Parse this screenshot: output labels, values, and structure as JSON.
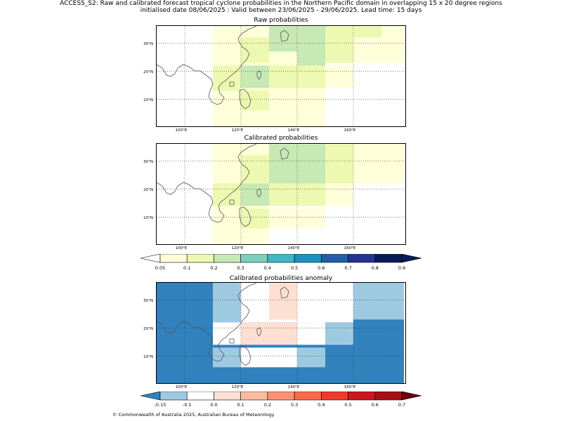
{
  "title_line1": "ACCESS_S2: Raw and calibrated forecast tropical cyclone probabilities in the Northern Pacific domain in overlapping 15 x 20 degree regions",
  "title_line2": "initialised date 08/06/2025 :  Valid between 23/06/2025 - 29/06/2025. Lead time: 15 days",
  "panels": [
    {
      "title": "Raw probabilities"
    },
    {
      "title": "Calibrated probabilities"
    },
    {
      "title": "Calibrated probabilities anomaly"
    }
  ],
  "lat_labels": [
    "30°N",
    "20°N",
    "10°N"
  ],
  "lon_labels": [
    "100°E",
    "120°E",
    "140°E",
    "160°E"
  ],
  "colorbar_prob": {
    "ticks": [
      "0.05",
      "0.1",
      "0.2",
      "0.3",
      "0.4",
      "0.5",
      "0.6",
      "0.7",
      "0.8",
      "0.9"
    ],
    "colors": [
      "#ffffd9",
      "#edf8b1",
      "#c7e9b4",
      "#7fcdbb",
      "#41b6c4",
      "#1d91c0",
      "#225ea8",
      "#253494",
      "#081d58"
    ],
    "under_color": "#ffffff",
    "over_color": "#081d58"
  },
  "colorbar_anom": {
    "ticks": [
      "-0.15",
      "-0.1",
      "0.0",
      "0.1",
      "0.2",
      "0.3",
      "0.4",
      "0.5",
      "0.6",
      "0.7"
    ],
    "colors": [
      "#9ecae1",
      "#ffffff",
      "#fee0d2",
      "#fcbba1",
      "#fc9272",
      "#fb6a4a",
      "#ef3b2c",
      "#cb181d",
      "#a50f15"
    ],
    "under_color": "#3182bd",
    "over_color": "#67000d"
  },
  "map_colors": {
    "pale_yellow": "#ffffd9",
    "light_yellow_green": "#edf8b1",
    "light_green": "#c7e9b4",
    "white": "#ffffff",
    "anom_blue": "#3182bd",
    "anom_light_blue": "#9ecae1",
    "anom_pink": "#fee0d2",
    "coast": "#555555"
  },
  "copyright": "© Commonwealth of Australia 2025, Australian Bureau of Meteorology"
}
